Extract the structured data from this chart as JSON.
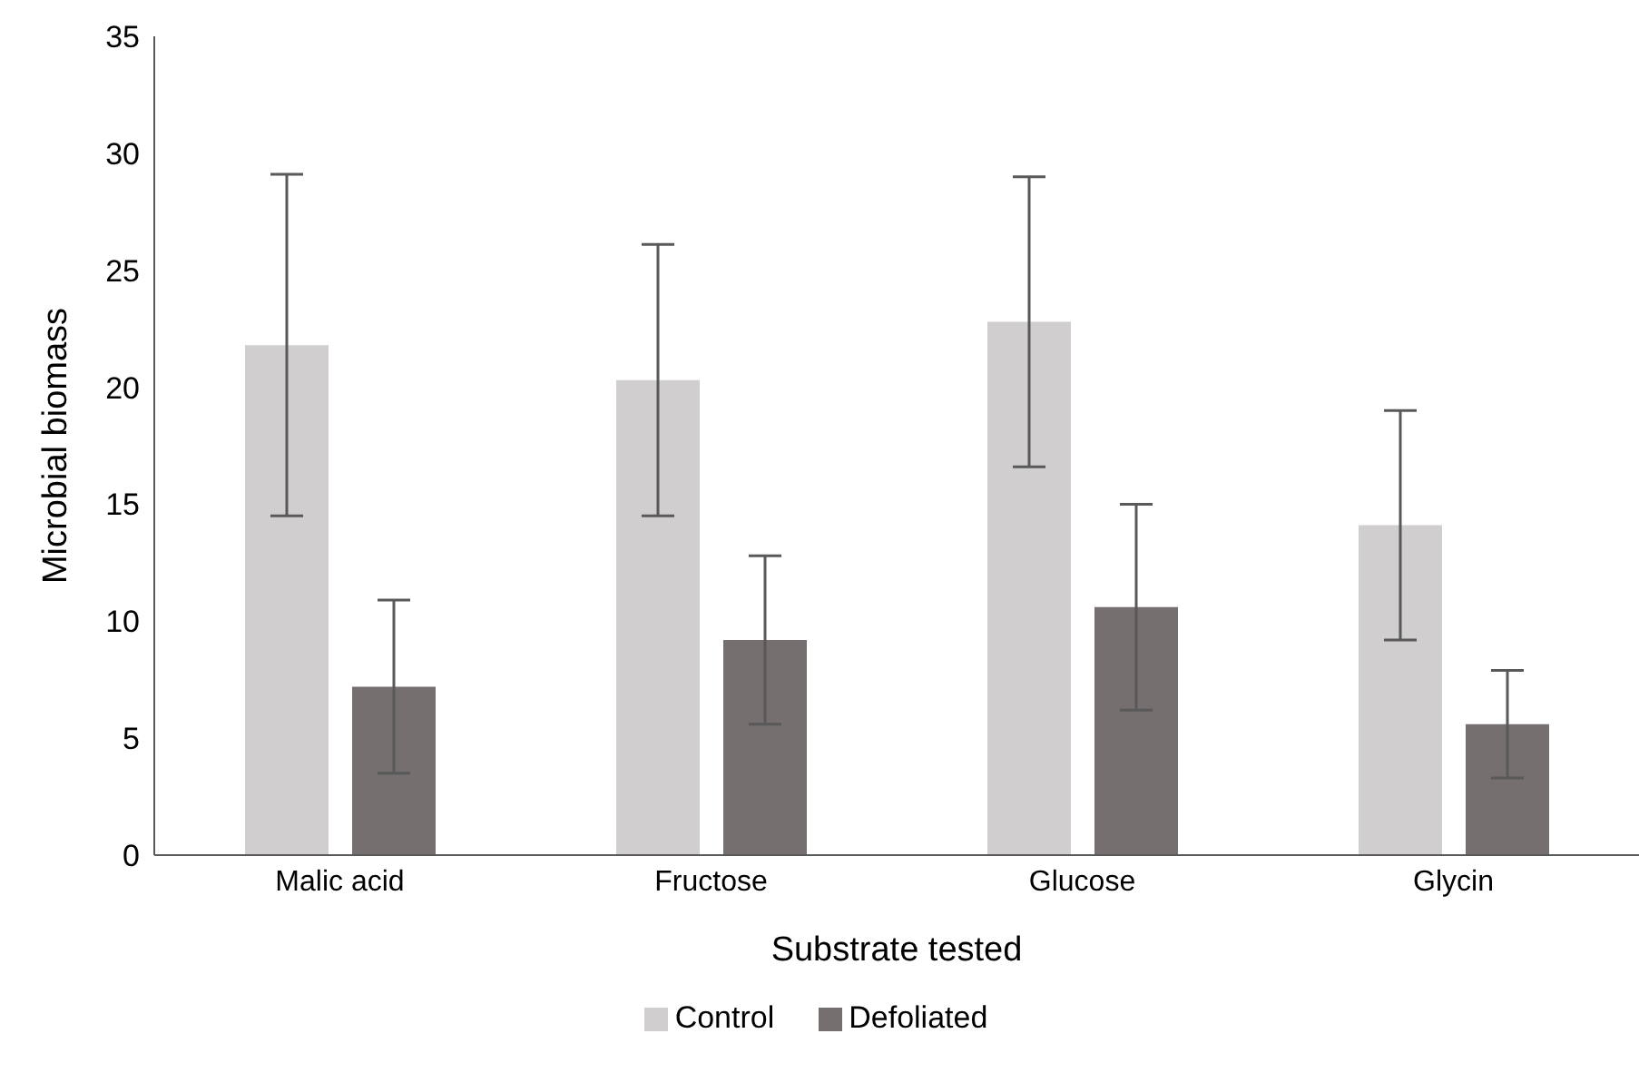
{
  "chart_data": {
    "type": "bar",
    "xlabel": "Substrate tested",
    "ylabel": "Microbial biomass",
    "categories": [
      "Malic acid",
      "Fructose",
      "Glucose",
      "Glycin"
    ],
    "series": [
      {
        "name": "Control",
        "color": "#d0cecf",
        "values": [
          21.8,
          20.3,
          22.8,
          14.1
        ],
        "errors": [
          7.3,
          5.8,
          6.2,
          4.9
        ]
      },
      {
        "name": "Defoliated",
        "color": "#756f6f",
        "values": [
          7.2,
          9.2,
          10.6,
          5.6
        ],
        "errors": [
          3.7,
          3.6,
          4.4,
          2.3
        ]
      }
    ],
    "ylim": [
      0,
      35
    ],
    "yticks": [
      0,
      5,
      10,
      15,
      20,
      25,
      30,
      35
    ],
    "grid": false,
    "legend": "bottom"
  }
}
